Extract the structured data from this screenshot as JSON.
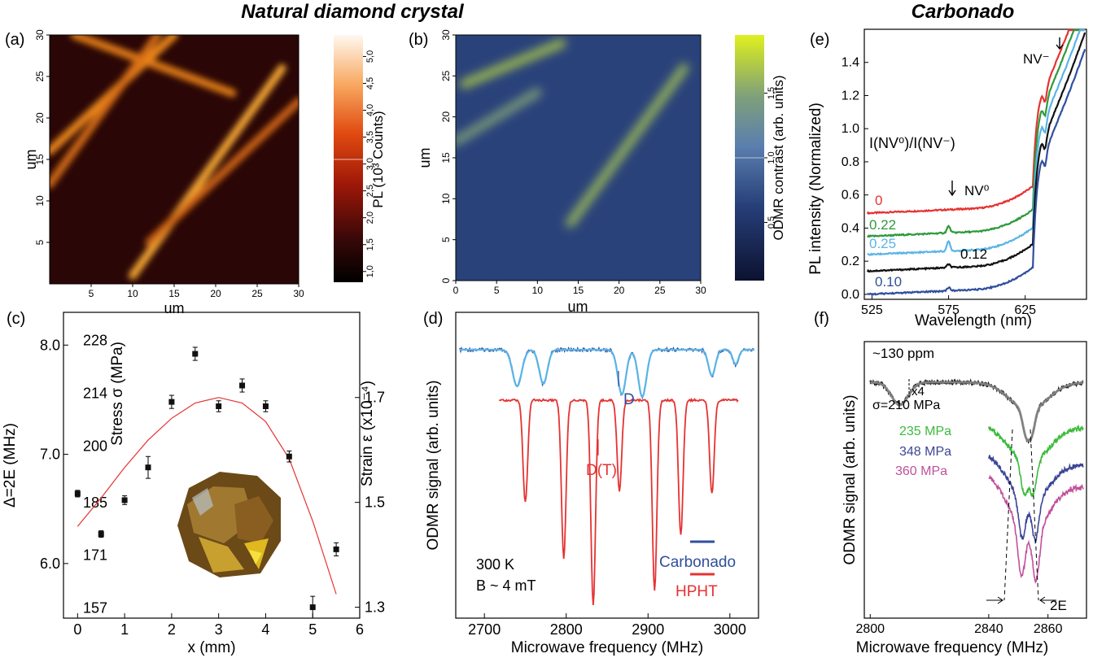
{
  "headings": {
    "natural": "Natural diamond crystal",
    "carbonado": "Carbonado"
  },
  "colors": {
    "red": "#e63232",
    "blue": "#2f4f9e",
    "lightblue": "#5ab4e6",
    "green": "#2e9a3c",
    "black": "#111111",
    "gray": "#8a8a8a",
    "brightgreen": "#3cbb3c",
    "navy": "#3c4696",
    "magenta": "#c0509a"
  },
  "chart_data": [
    {
      "panel": "(a)",
      "type": "heatmap",
      "xlabel": "um",
      "ylabel": "um",
      "xticks": [
        "5",
        "10",
        "15",
        "20",
        "25",
        "30"
      ],
      "yticks": [
        "5",
        "10",
        "15",
        "20",
        "25",
        "30"
      ],
      "xlim": [
        0,
        30
      ],
      "ylim": [
        0,
        30
      ],
      "colorbar_label": "PL (10³ Counts)",
      "colorbar_ticks": [
        "1,0",
        "1,5",
        "2,0",
        "2,5",
        "3,0",
        "3,5",
        "4,0",
        "4,5",
        "5,0"
      ],
      "colorscale": "hot",
      "features": [
        {
          "from": [
            10,
            1
          ],
          "to": [
            28,
            26
          ],
          "intensity": 4.0
        },
        {
          "from": [
            0,
            16
          ],
          "to": [
            15,
            30
          ],
          "intensity": 3.3
        },
        {
          "from": [
            3,
            30
          ],
          "to": [
            22,
            23
          ],
          "intensity": 3.0
        },
        {
          "from": [
            0,
            12
          ],
          "to": [
            13,
            30
          ],
          "intensity": 2.6
        },
        {
          "from": [
            12,
            5
          ],
          "to": [
            30,
            22
          ],
          "intensity": 2.4
        }
      ]
    },
    {
      "panel": "(b)",
      "type": "heatmap",
      "xlabel": "um",
      "ylabel": "um",
      "xticks": [
        "0",
        "5",
        "10",
        "15",
        "20",
        "25",
        "30"
      ],
      "yticks": [
        "0",
        "5",
        "10",
        "15",
        "20",
        "25",
        "30"
      ],
      "xlim": [
        0,
        30
      ],
      "ylim": [
        0,
        30
      ],
      "colorbar_label": "ODMR contrast (arb. units)",
      "colorbar_ticks": [
        "0,5",
        "1,0",
        "1,5"
      ],
      "colorscale": "navy-blue-yellowgreen",
      "features": [
        {
          "from": [
            14,
            7
          ],
          "to": [
            28,
            26
          ],
          "intensity": 1.5
        },
        {
          "from": [
            1,
            24
          ],
          "to": [
            13,
            29
          ],
          "intensity": 1.6
        },
        {
          "from": [
            0,
            17
          ],
          "to": [
            10,
            23
          ],
          "intensity": 1.2
        }
      ]
    },
    {
      "panel": "(c)",
      "type": "scatter",
      "xlabel": "x (mm)",
      "ylabel": "Δ=2E (MHz)",
      "ylabel2": "Stress σ (MPa)",
      "ylabel3": "Strain ε (x10⁻⁴)",
      "xticks": [
        "0",
        "1",
        "2",
        "3",
        "4",
        "5",
        "6"
      ],
      "yticks": [
        "6.0",
        "7.0",
        "8.0"
      ],
      "stress_ticks": [
        "157",
        "171",
        "185",
        "200",
        "214",
        "228"
      ],
      "strain_ticks": [
        "1.3",
        "1.5",
        "1.7"
      ],
      "xlim": [
        -0.3,
        6
      ],
      "ylim": [
        5.5,
        8.3
      ],
      "points": {
        "x": [
          0,
          0.5,
          1,
          1.5,
          2,
          2.5,
          3,
          3.5,
          4,
          4.5,
          5,
          5.5
        ],
        "y": [
          6.64,
          6.27,
          6.58,
          6.88,
          7.48,
          7.92,
          7.44,
          7.63,
          7.44,
          6.98,
          5.6,
          6.13
        ],
        "err": [
          0.03,
          0.03,
          0.04,
          0.1,
          0.06,
          0.06,
          0.05,
          0.06,
          0.05,
          0.05,
          0.1,
          0.06
        ]
      },
      "fit": {
        "x": [
          0,
          0.5,
          1,
          1.5,
          2,
          2.5,
          3,
          3.5,
          4,
          4.5,
          5,
          5.5
        ],
        "y": [
          6.34,
          6.6,
          6.88,
          7.13,
          7.33,
          7.47,
          7.52,
          7.47,
          7.3,
          6.96,
          6.39,
          5.72
        ]
      }
    },
    {
      "panel": "(d)",
      "type": "line",
      "xlabel": "Microwave frequency (MHz)",
      "ylabel": "ODMR signal (arb. units)",
      "xticks": [
        "2700",
        "2800",
        "2900",
        "3000"
      ],
      "xlim": [
        2665,
        3035
      ],
      "series": [
        {
          "name": "Carbonado",
          "color": "blue",
          "xrange": [
            2670,
            3030
          ],
          "baseline": 1.0,
          "dips": [
            [
              2740,
              0.45,
              8
            ],
            [
              2772,
              0.42,
              7
            ],
            [
              2868,
              0.55,
              7
            ],
            [
              2893,
              0.58,
              7
            ],
            [
              2978,
              0.32,
              6
            ],
            [
              3007,
              0.18,
              5
            ]
          ]
        },
        {
          "name": "HPHT",
          "color": "red",
          "xrange": [
            2718,
            3010
          ],
          "baseline": 0.0,
          "dips": [
            [
              2750,
              3.5,
              4
            ],
            [
              2797,
              5.4,
              4
            ],
            [
              2833,
              7.0,
              4
            ],
            [
              2865,
              3.1,
              4
            ],
            [
              2908,
              6.5,
              4
            ],
            [
              2940,
              4.6,
              4
            ],
            [
              2978,
              3.2,
              4
            ]
          ]
        }
      ],
      "annotations": [
        "D",
        "D(T)",
        "300 K",
        "B ~ 4 mT"
      ]
    },
    {
      "panel": "(e)",
      "type": "line",
      "xlabel": "Wavelength (nm)",
      "ylabel": "PL intensity (Normalized)",
      "xticks": [
        "525",
        "575",
        "625"
      ],
      "yticks": [
        "0.0",
        "0.2",
        "0.4",
        "0.6",
        "0.8",
        "1.0",
        "1.2",
        "1.4"
      ],
      "xlim": [
        520,
        665
      ],
      "ylim": [
        -0.03,
        1.6
      ],
      "legend_title": "I(NV⁰)/I(NV⁻)",
      "series": [
        {
          "name": "0",
          "color": "red",
          "offset": 0.49,
          "zpl": 0.0,
          "peak": 1.3
        },
        {
          "name": "0.22",
          "color": "green",
          "offset": 0.35,
          "zpl": 0.04,
          "peak": 1.22
        },
        {
          "name": "0.25",
          "color": "lightblue",
          "offset": 0.24,
          "zpl": 0.06,
          "peak": 1.12
        },
        {
          "name": "0.12",
          "color": "black",
          "offset": 0.14,
          "zpl": 0.02,
          "peak": 1.02
        },
        {
          "name": "0.10",
          "color": "blue",
          "offset": 0.0,
          "zpl": 0.02,
          "peak": 0.92
        }
      ],
      "annotations": [
        "NV⁻",
        "NV⁰"
      ]
    },
    {
      "panel": "(f)",
      "type": "line",
      "xlabel": "Microwave frequency (MHz)",
      "ylabel": "ODMR signal (arb. units)",
      "xticks": [
        "2800",
        "2840",
        "2860"
      ],
      "xlim": [
        2798,
        2873
      ],
      "series": [
        {
          "name": "σ=210 MPa",
          "color": "black",
          "xrange": [
            2800,
            2872
          ],
          "offset": 9.0,
          "split": 2.0,
          "depth": 1.6
        },
        {
          "name": "235 MPa",
          "color": "brightgreen",
          "xrange": [
            2840,
            2872
          ],
          "offset": 7.0,
          "split": 3.0,
          "depth": 1.25
        },
        {
          "name": "348 MPa",
          "color": "navy",
          "xrange": [
            2840,
            2872
          ],
          "offset": 5.6,
          "split": 4.5,
          "depth": 1.35
        },
        {
          "name": "360 MPa",
          "color": "magenta",
          "xrange": [
            2840,
            2872
          ],
          "offset": 4.6,
          "split": 5.0,
          "depth": 1.55
        }
      ],
      "annotations": [
        "~130 ppm",
        "x4",
        "2E"
      ]
    }
  ]
}
